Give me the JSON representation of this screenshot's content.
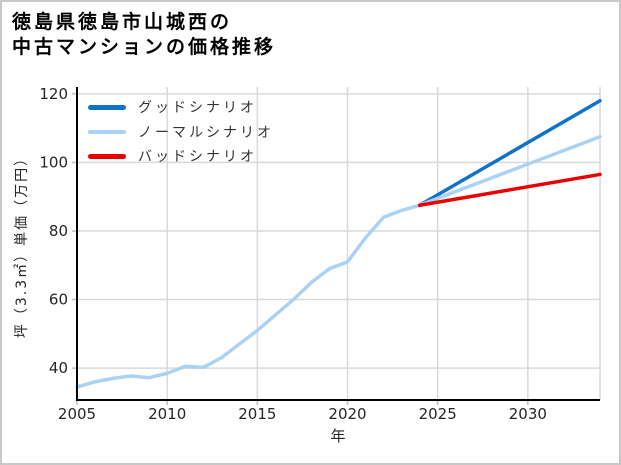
{
  "title": {
    "line1": "徳島県徳島市山城西の",
    "line2": "中古マンションの価格推移"
  },
  "legend": {
    "items": [
      {
        "label": "グッドシナリオ",
        "color": "#1173c8"
      },
      {
        "label": "ノーマルシナリオ",
        "color": "#a9d2f5"
      },
      {
        "label": "バッドシナリオ",
        "color": "#ec0000"
      }
    ]
  },
  "axes": {
    "xlabel": "年",
    "ylabel": "坪（3.3㎡）単価（万円）"
  },
  "chart_data": {
    "type": "line",
    "title": "徳島県徳島市山城西の中古マンションの価格推移",
    "xlabel": "年",
    "ylabel": "坪（3.3㎡）単価（万円）",
    "xlim": [
      2005,
      2034
    ],
    "ylim": [
      30.7,
      122
    ],
    "x_ticks": [
      2005,
      2010,
      2015,
      2020,
      2025,
      2030
    ],
    "y_ticks": [
      40,
      60,
      80,
      100,
      120
    ],
    "grid": true,
    "grid_color": "#d9d9d9",
    "tick_mark_color": "#c0c0c0",
    "spine_color": "#000000",
    "tick_label_color": "#262626",
    "legend_position": "upper-left",
    "series": [
      {
        "name": "historical",
        "shown_in_legend": false,
        "color": "#a9d2f5",
        "width": 3.5,
        "x": [
          2005,
          2006,
          2007,
          2008,
          2009,
          2010,
          2011,
          2012,
          2013,
          2014,
          2015,
          2016,
          2017,
          2018,
          2019,
          2020,
          2021,
          2022,
          2023,
          2024
        ],
        "values": [
          34.5,
          36,
          37,
          37.7,
          37.2,
          38.5,
          40.5,
          40.2,
          43,
          47,
          51,
          55.5,
          60,
          65,
          69,
          71,
          78,
          84,
          86,
          87.5
        ]
      },
      {
        "name": "グッドシナリオ",
        "shown_in_legend": true,
        "color": "#1173c8",
        "width": 3.5,
        "x": [
          2024,
          2034
        ],
        "values": [
          87.5,
          118
        ]
      },
      {
        "name": "ノーマルシナリオ",
        "shown_in_legend": true,
        "color": "#a9d2f5",
        "width": 3.5,
        "x": [
          2024,
          2034
        ],
        "values": [
          87.5,
          107.5
        ]
      },
      {
        "name": "バッドシナリオ",
        "shown_in_legend": true,
        "color": "#ec0000",
        "width": 3.5,
        "x": [
          2024,
          2034
        ],
        "values": [
          87.5,
          96.5
        ]
      }
    ]
  }
}
